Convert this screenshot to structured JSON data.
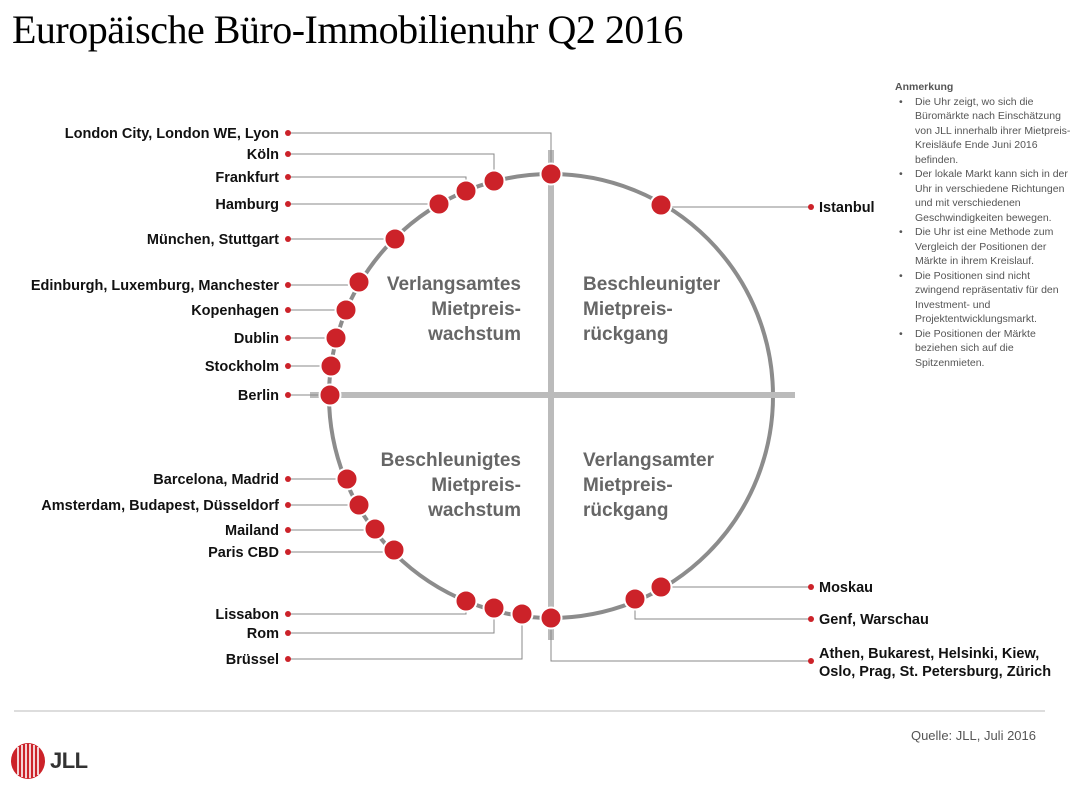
{
  "title": "Europäische Büro-Immobilienuhr Q2 2016",
  "quadrants": {
    "top_left": [
      "Verlangsamtes",
      "Mietpreis-",
      "wachstum"
    ],
    "top_right": [
      "Beschleunigter",
      "Mietpreis-",
      "rückgang"
    ],
    "bottom_left": [
      "Beschleunigtes",
      "Mietpreis-",
      "wachstum"
    ],
    "bottom_right": [
      "Verlangsamter",
      "Mietpreis-",
      "rückgang"
    ]
  },
  "markets_left": [
    "London City, London WE, Lyon",
    "Köln",
    "Frankfurt",
    "Hamburg",
    "München, Stuttgart",
    "Edinburgh, Luxemburg, Manchester",
    "Kopenhagen",
    "Dublin",
    "Stockholm",
    "Berlin",
    "Barcelona, Madrid",
    "Amsterdam, Budapest, Düsseldorf",
    "Mailand",
    "Paris CBD",
    "Lissabon",
    "Rom",
    "Brüssel"
  ],
  "markets_right": [
    "Istanbul",
    "Moskau",
    "Genf, Warschau",
    "Athen, Bukarest, Helsinki, Kiew,",
    "Oslo, Prag, St. Petersburg, Zürich"
  ],
  "notes": {
    "heading": "Anmerkung",
    "items": [
      "Die Uhr zeigt, wo sich die Büromärkte nach Einschätzung von JLL innerhalb ihrer Mietpreis-Kreisläufe Ende Juni 2016 befinden.",
      "Der lokale Markt kann sich in der Uhr in verschiedene Richtungen und mit verschiedenen Geschwindigkeiten bewegen.",
      "Die Uhr ist eine Methode zum Vergleich der Positionen der Märkte in ihrem Kreislauf.",
      "Die Positionen sind nicht zwingend repräsentativ für den Investment- und Projektentwicklungsmarkt.",
      "Die Positionen der Märkte beziehen sich auf die Spitzenmieten."
    ]
  },
  "source": "Quelle: JLL, Juli 2016",
  "logo_text": "JLL",
  "colors": {
    "marker": "#cc2229",
    "circle": "#8c8c8c",
    "quadrant_text": "#666666",
    "leader": "#888888"
  }
}
